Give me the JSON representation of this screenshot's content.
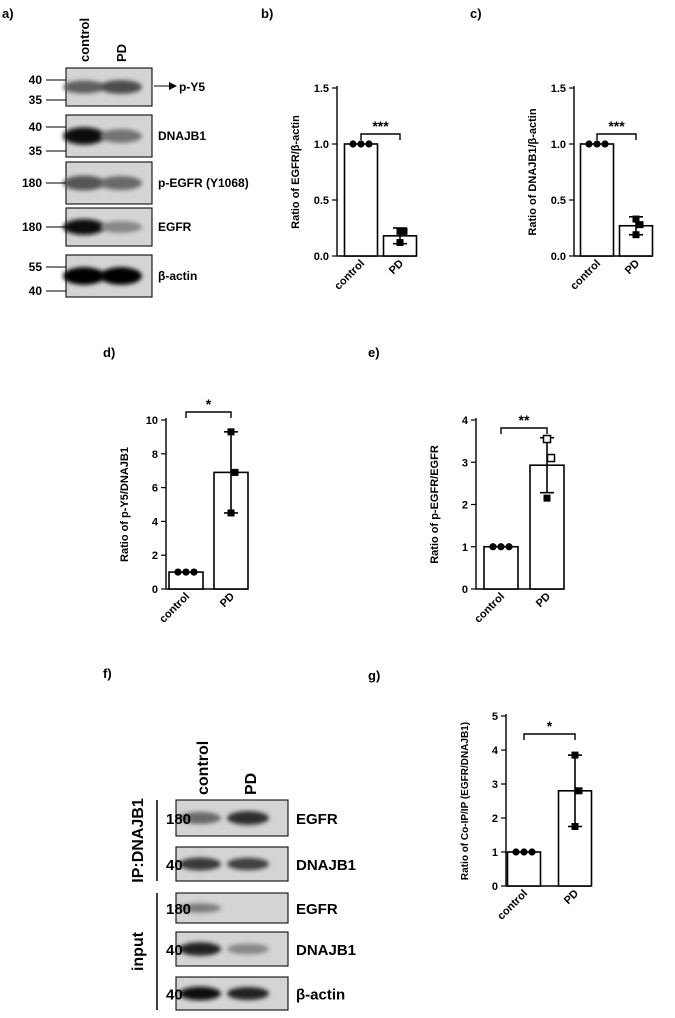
{
  "panel_labels": [
    "a)",
    "b)",
    "c)",
    "d)",
    "e)",
    "f)",
    "g)"
  ],
  "blot_a": {
    "lanes": [
      "control",
      "PD"
    ],
    "rows": [
      {
        "label": "p-Y5",
        "markers": [
          "40",
          "35"
        ],
        "arrow": true,
        "ctrl": 0.55,
        "pd": 0.65
      },
      {
        "label": "DNAJB1",
        "markers": [
          "40",
          "35"
        ],
        "arrow": false,
        "ctrl": 0.95,
        "pd": 0.45
      },
      {
        "label": "p-EGFR (Y1068)",
        "markers": [
          "180"
        ],
        "arrow": false,
        "ctrl": 0.6,
        "pd": 0.5
      },
      {
        "label": "EGFR",
        "markers": [
          "180"
        ],
        "arrow": false,
        "ctrl": 0.95,
        "pd": 0.35
      },
      {
        "label": "β-actin",
        "markers": [
          "55",
          "40"
        ],
        "arrow": false,
        "ctrl": 1.0,
        "pd": 1.0
      }
    ]
  },
  "blot_f": {
    "lanes": [
      "control",
      "PD"
    ],
    "groups": [
      {
        "label": "IP:DNAJB1",
        "rows": [
          {
            "label": "EGFR",
            "marker": "180",
            "ctrl": 0.5,
            "pd": 0.8
          },
          {
            "label": "DNAJB1",
            "marker": "40",
            "ctrl": 0.75,
            "pd": 0.7
          }
        ]
      },
      {
        "label": "input",
        "rows": [
          {
            "label": "EGFR",
            "marker": "180",
            "ctrl": 0.4,
            "pd": 0.0
          },
          {
            "label": "DNAJB1",
            "marker": "40",
            "ctrl": 0.85,
            "pd": 0.35
          },
          {
            "label": "β-actin",
            "marker": "40",
            "ctrl": 0.95,
            "pd": 0.85
          }
        ]
      }
    ]
  },
  "chart_data": [
    {
      "type": "bar",
      "panel": "b)",
      "categories": [
        "control",
        "PD"
      ],
      "values": [
        1.0,
        0.18
      ],
      "errors": [
        0.0,
        0.07
      ],
      "points": [
        [
          1.0,
          1.0,
          1.0
        ],
        [
          0.12,
          0.22,
          0.22
        ]
      ],
      "ylabel": "Ratio of EGFR/β-actin",
      "ylim": [
        0,
        1.5
      ],
      "yticks": [
        "0.0",
        "0.5",
        "1.0",
        "1.5"
      ],
      "significance": "***"
    },
    {
      "type": "bar",
      "panel": "c)",
      "categories": [
        "control",
        "PD"
      ],
      "values": [
        1.0,
        0.27
      ],
      "errors": [
        0.0,
        0.08
      ],
      "points": [
        [
          1.0,
          1.0,
          1.0
        ],
        [
          0.19,
          0.28,
          0.33
        ]
      ],
      "ylabel": "Ratio of DNAJB1/β-actin",
      "ylim": [
        0,
        1.5
      ],
      "yticks": [
        "0.0",
        "0.5",
        "1.0",
        "1.5"
      ],
      "significance": "***"
    },
    {
      "type": "bar",
      "panel": "d)",
      "categories": [
        "control",
        "PD"
      ],
      "values": [
        1.0,
        6.9
      ],
      "errors": [
        0.0,
        2.4
      ],
      "points": [
        [
          1.0,
          1.0,
          1.0
        ],
        [
          4.5,
          6.9,
          9.3
        ]
      ],
      "ylabel": "Ratio of p-Y5/DNAJB1",
      "ylim": [
        0,
        10
      ],
      "yticks": [
        "0",
        "2",
        "4",
        "6",
        "8",
        "10"
      ],
      "significance": "*"
    },
    {
      "type": "bar",
      "panel": "e)",
      "categories": [
        "control",
        "PD"
      ],
      "values": [
        1.0,
        2.93
      ],
      "errors": [
        0.0,
        0.65
      ],
      "points": [
        [
          1.0,
          1.0,
          1.0
        ],
        [
          2.15,
          3.1,
          3.55
        ]
      ],
      "ylabel": "Ratio of p-EGFR/EGFR",
      "ylim": [
        0,
        4
      ],
      "yticks": [
        "0",
        "1",
        "2",
        "3",
        "4"
      ],
      "significance": "**"
    },
    {
      "type": "bar",
      "panel": "g)",
      "categories": [
        "control",
        "PD"
      ],
      "values": [
        1.0,
        2.8
      ],
      "errors": [
        0.0,
        1.05
      ],
      "points": [
        [
          1.0,
          1.0,
          1.0
        ],
        [
          1.75,
          2.8,
          3.85
        ]
      ],
      "ylabel": "Ratio of Co-IP/IP (EGFR/DNAJB1)",
      "ylim": [
        0,
        5
      ],
      "yticks": [
        "0",
        "1",
        "2",
        "3",
        "4",
        "5"
      ],
      "significance": "*"
    }
  ]
}
